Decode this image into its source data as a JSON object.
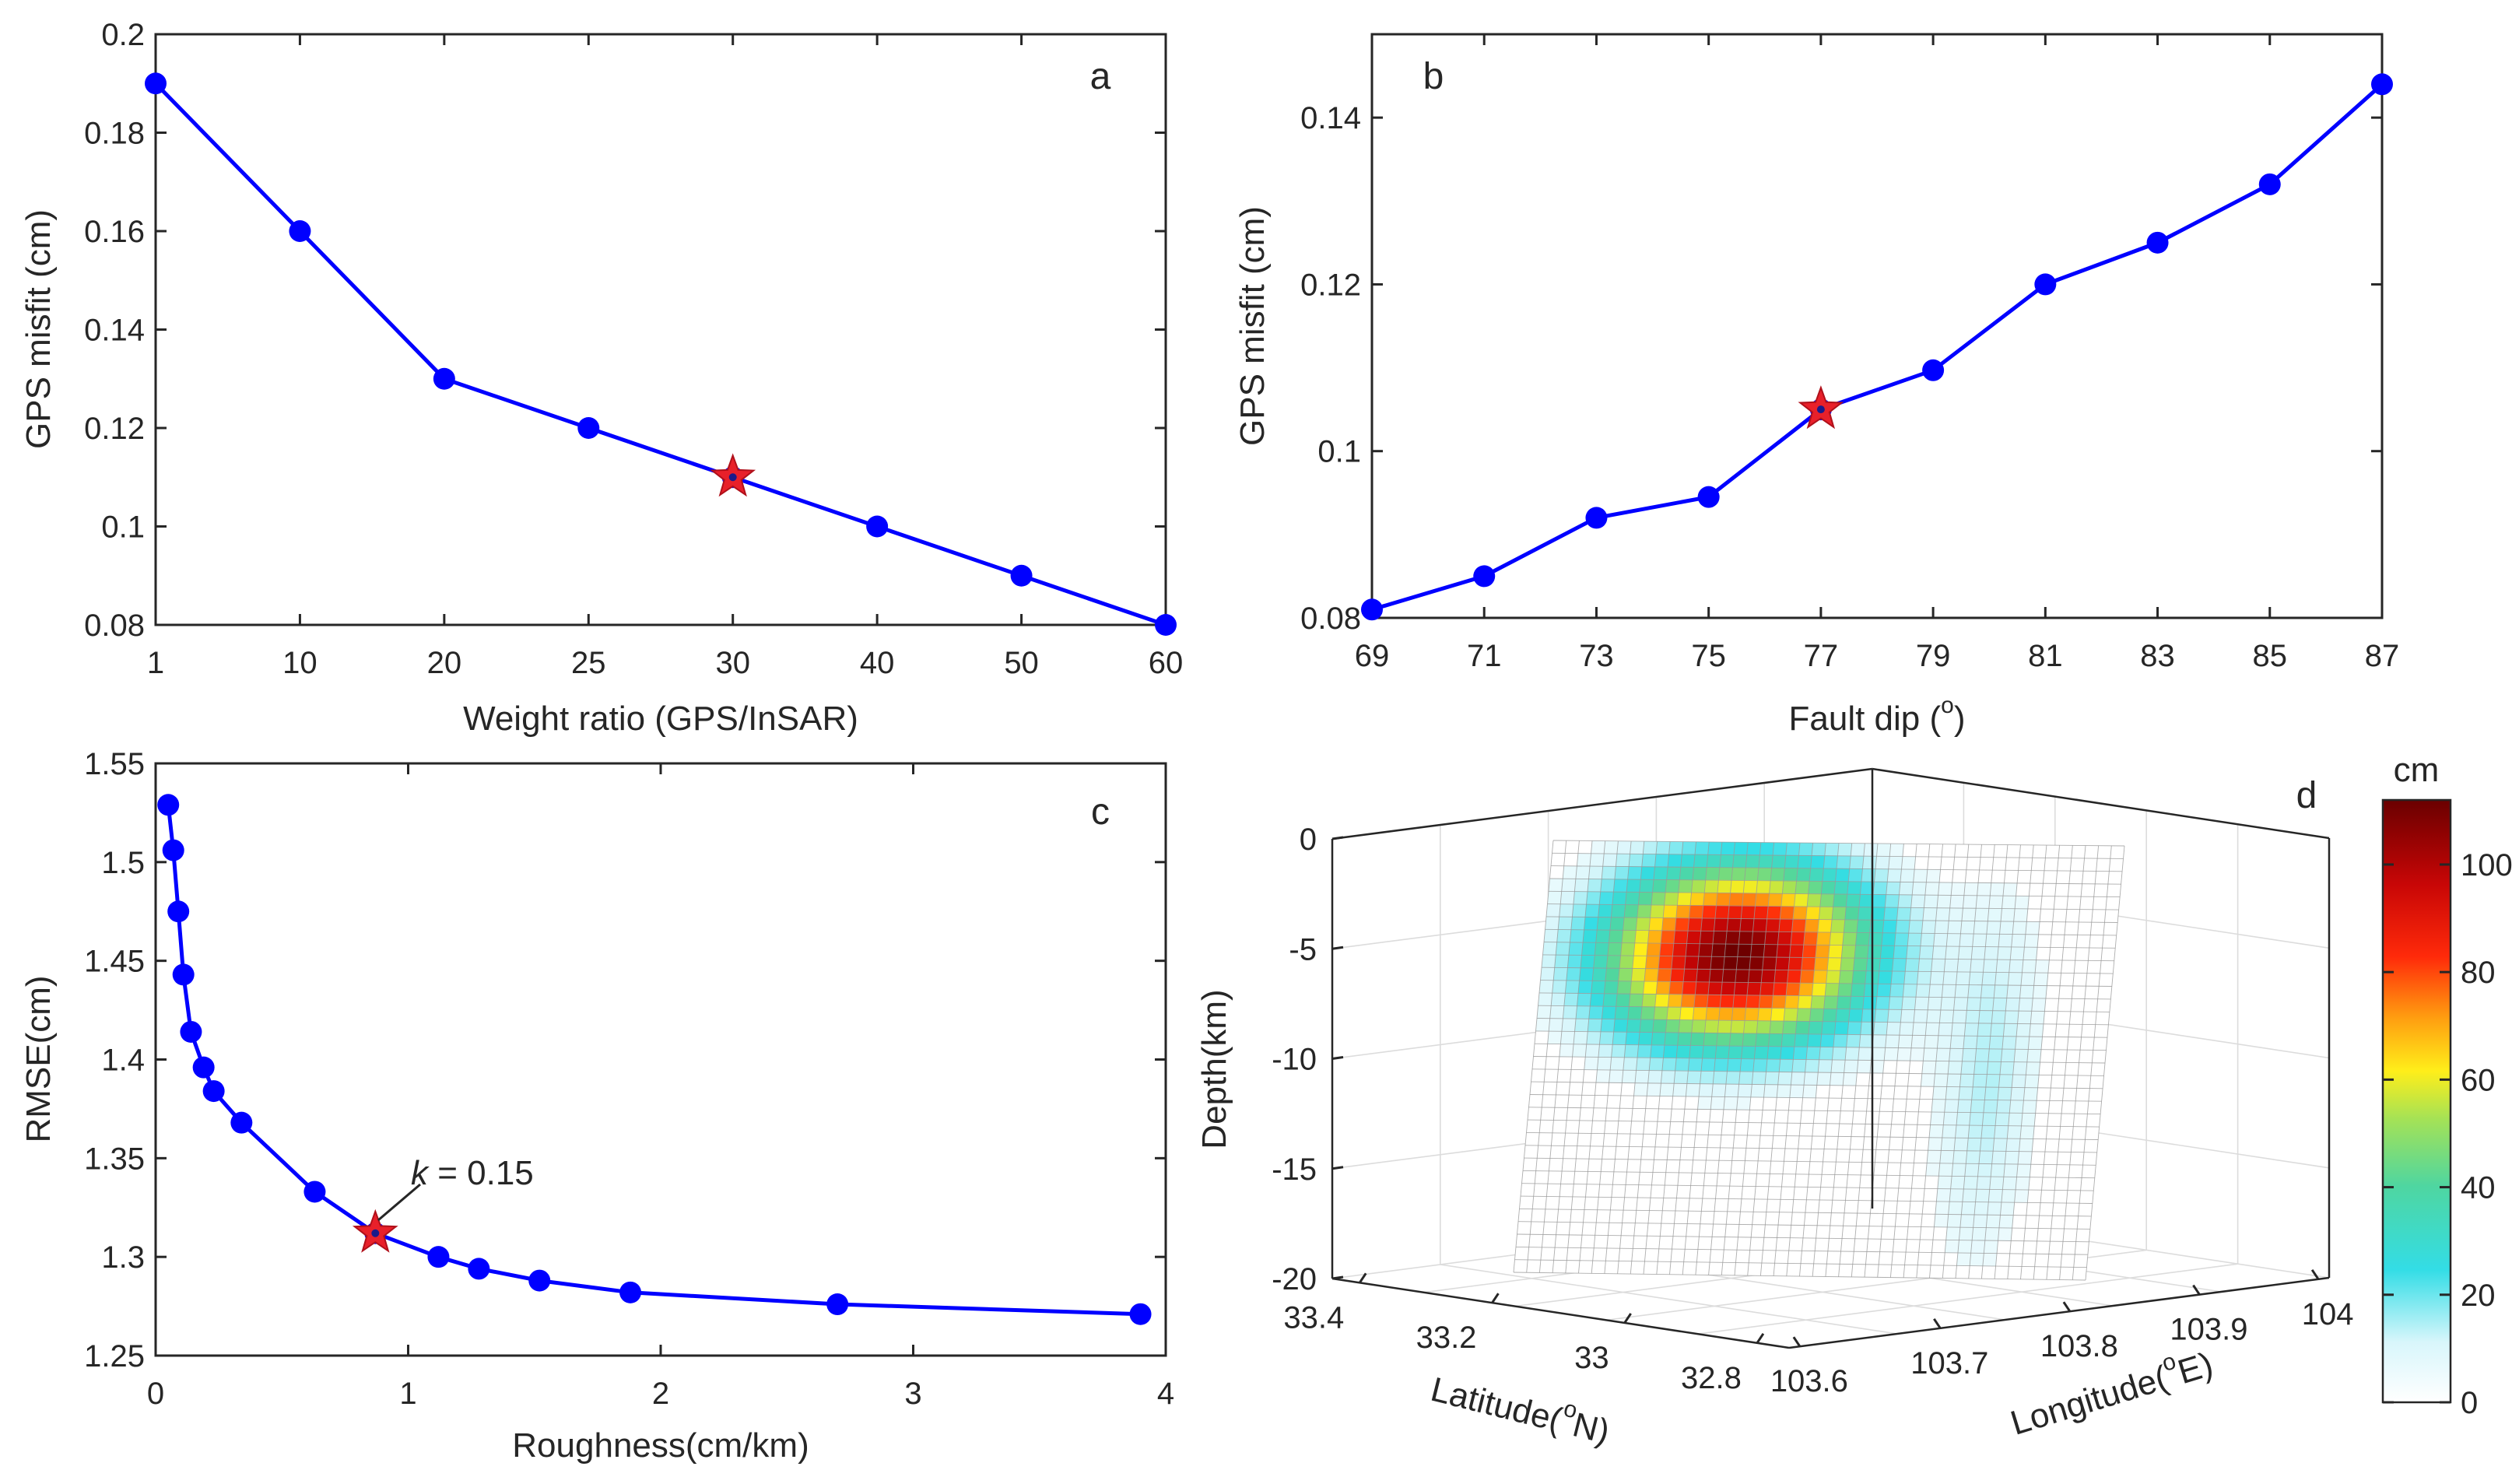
{
  "colors": {
    "series": "#0000ff",
    "optimum": "#e8202a",
    "axis": "#262626",
    "grid": "#dcdcdc"
  },
  "chart_data": [
    {
      "type": "line",
      "panel_label": "a",
      "xlabel": "Weight ratio (GPS/InSAR)",
      "ylabel": "GPS misfit (cm)",
      "x_axis": "categorical",
      "categories": [
        "1",
        "10",
        "20",
        "25",
        "30",
        "40",
        "50",
        "60"
      ],
      "values": [
        0.19,
        0.16,
        0.13,
        0.12,
        0.11,
        0.1,
        0.09,
        0.08
      ],
      "ylim": [
        0.08,
        0.2
      ],
      "yticks": [
        "0.08",
        "0.1",
        "0.12",
        "0.14",
        "0.16",
        "0.18",
        "0.2"
      ],
      "optimum": {
        "category": "30",
        "value": 0.11,
        "marker": "red star"
      },
      "grid": false
    },
    {
      "type": "line",
      "panel_label": "b",
      "xlabel": "Fault dip (",
      "xlabel_sup": "o",
      "xlabel_close": ")",
      "ylabel": "GPS misfit (cm)",
      "x": [
        69,
        71,
        73,
        75,
        77,
        79,
        81,
        83,
        85,
        87
      ],
      "y": [
        0.081,
        0.085,
        0.092,
        0.0945,
        0.105,
        0.1097,
        0.12,
        0.125,
        0.132,
        0.144
      ],
      "xlim": [
        69,
        87
      ],
      "ylim": [
        0.08,
        0.15
      ],
      "xticks": [
        "69",
        "71",
        "73",
        "75",
        "77",
        "79",
        "81",
        "83",
        "85",
        "87"
      ],
      "yticks": [
        "0.08",
        "0.1",
        "0.12",
        "0.14"
      ],
      "optimum": {
        "x": 77,
        "y": 0.105,
        "marker": "red star"
      },
      "grid": false
    },
    {
      "type": "line",
      "panel_label": "c",
      "xlabel": "Roughness(cm/km)",
      "ylabel": "RMSE(cm)",
      "x": [
        0.05,
        0.07,
        0.09,
        0.11,
        0.14,
        0.19,
        0.23,
        0.34,
        0.63,
        0.87,
        1.12,
        1.28,
        1.52,
        1.88,
        2.7,
        3.9
      ],
      "y": [
        1.529,
        1.506,
        1.475,
        1.443,
        1.414,
        1.396,
        1.384,
        1.368,
        1.333,
        1.312,
        1.3,
        1.294,
        1.288,
        1.282,
        1.276,
        1.271
      ],
      "xlim": [
        0,
        4
      ],
      "ylim": [
        1.25,
        1.55
      ],
      "xticks": [
        "0",
        "1",
        "2",
        "3",
        "4"
      ],
      "yticks": [
        "1.25",
        "1.3",
        "1.35",
        "1.4",
        "1.45",
        "1.5",
        "1.55"
      ],
      "optimum": {
        "x": 0.87,
        "y": 1.312,
        "marker": "red star"
      },
      "annotation": {
        "italic": "k",
        "text": " = 0.15"
      },
      "grid": false
    },
    {
      "type": "heatmap",
      "panel_label": "d",
      "view": "3d",
      "zlabel": "Depth(km)",
      "zticks": [
        "0",
        "-5",
        "-10",
        "-15",
        "-20"
      ],
      "lat_label": "Latitude(",
      "lat_sup": "o",
      "lat_close": "N)",
      "lat_ticks": [
        "33.4",
        "33.2",
        "33",
        "32.8"
      ],
      "lon_label": "Longitude(",
      "lon_sup": "o",
      "lon_close": "E)",
      "lon_ticks": [
        "103.6",
        "103.7",
        "103.8",
        "103.9",
        "104"
      ],
      "colorbar": {
        "title": "cm",
        "range": [
          0,
          112
        ],
        "ticks": [
          "0",
          "20",
          "40",
          "60",
          "80",
          "100"
        ],
        "colormap": "jet-like (white to cyan to yellow to red to dark red)"
      },
      "slip_peak_cm": 112,
      "grid": true
    }
  ]
}
